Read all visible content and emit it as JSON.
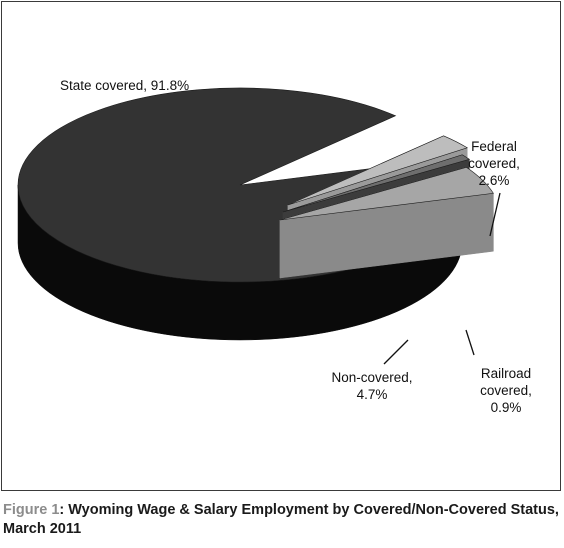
{
  "chart_data": {
    "type": "pie",
    "style": "3d-exploded",
    "slices": [
      {
        "name": "State covered",
        "value": 91.8,
        "label_lines": [
          "State covered, 91.8%"
        ],
        "color": "#333333",
        "side_color": "#0a0a0a"
      },
      {
        "name": "Federal covered",
        "value": 2.6,
        "label_lines": [
          "Federal",
          "covered,",
          "2.6%"
        ],
        "color": "#bdbdbd",
        "side_color": "#9a9a9a"
      },
      {
        "name": "Railroad covered",
        "value": 0.9,
        "label_lines": [
          "Railroad",
          "covered,",
          "0.9%"
        ],
        "color": "#6e6e6e",
        "side_color": "#3c3c3c"
      },
      {
        "name": "Non-covered",
        "value": 4.7,
        "label_lines": [
          "Non-covered,",
          "4.7%"
        ],
        "color": "#a6a6a6",
        "side_color": "#8a8a8a"
      }
    ]
  },
  "caption": {
    "prefix": "Figure 1",
    "text": ": Wyoming Wage & Salary Employment by Covered/Non-Covered Status, March 2011"
  }
}
